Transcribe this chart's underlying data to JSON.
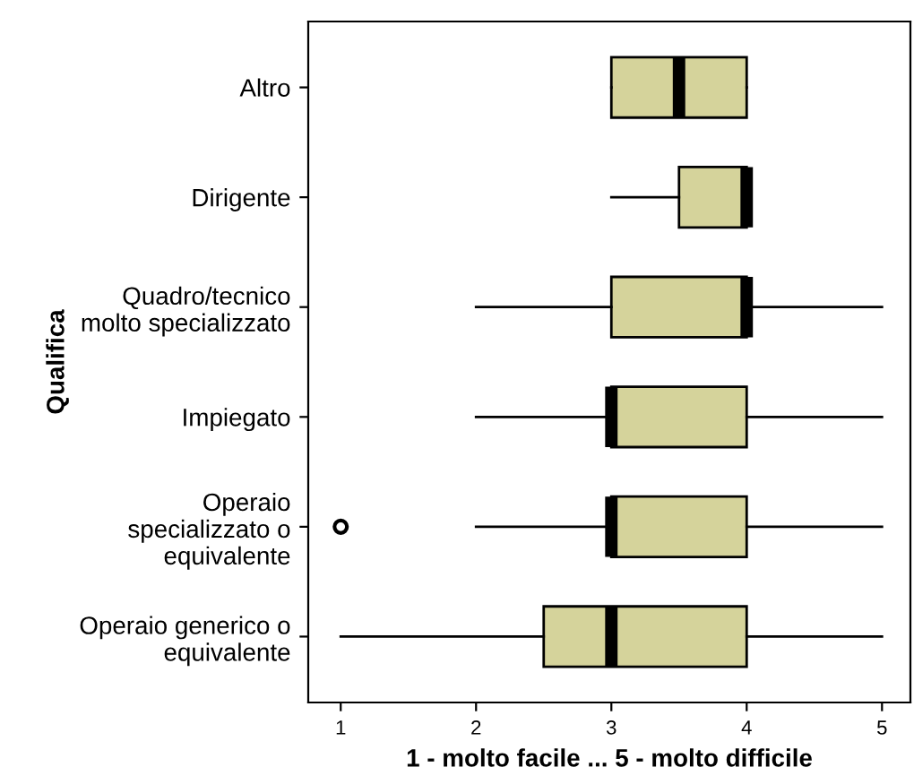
{
  "chart_data": {
    "type": "box",
    "orientation": "horizontal",
    "xlabel": "1 - molto facile ... 5 - molto difficile",
    "ylabel": "Qualifica",
    "categories": [
      "Altro",
      "Dirigente",
      "Quadro/tecnico\nmolto specializzato",
      "Impiegato",
      "Operaio\nspecializzato o\nequivalente",
      "Operaio generico o\nequivalente"
    ],
    "boxes": [
      {
        "low": 3,
        "q1": 3,
        "median": 3.5,
        "q3": 4,
        "high": 4
      },
      {
        "low": 3,
        "q1": 3.5,
        "median": 4,
        "q3": 4,
        "high": 4
      },
      {
        "low": 2,
        "q1": 3,
        "median": 4,
        "q3": 4,
        "high": 5
      },
      {
        "low": 2,
        "q1": 3,
        "median": 3,
        "q3": 4,
        "high": 5
      },
      {
        "low": 2,
        "q1": 3,
        "median": 3,
        "q3": 4,
        "high": 5,
        "outliers": [
          1
        ]
      },
      {
        "low": 1,
        "q1": 2.5,
        "median": 3,
        "q3": 4,
        "high": 5
      }
    ],
    "color": "#d5d39b",
    "xlim": [
      0.76,
      5.21
    ],
    "xticks": [
      1,
      2,
      3,
      4,
      5
    ],
    "grid": false
  }
}
